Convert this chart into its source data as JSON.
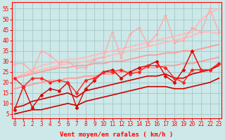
{
  "bg_color": "#cce8e8",
  "grid_color": "#aacccc",
  "xlabel": "Vent moyen/en rafales ( km/h )",
  "ylabel_ticks": [
    5,
    10,
    15,
    20,
    25,
    30,
    35,
    40,
    45,
    50,
    55
  ],
  "xlim": [
    -0.3,
    23.3
  ],
  "ylim": [
    3,
    58
  ],
  "x": [
    0,
    1,
    2,
    3,
    4,
    5,
    6,
    7,
    8,
    9,
    10,
    11,
    12,
    13,
    14,
    15,
    16,
    17,
    18,
    19,
    20,
    21,
    22,
    23
  ],
  "lines": [
    {
      "y": [
        22,
        24,
        26,
        28,
        29,
        30,
        31,
        31,
        32,
        33,
        34,
        35,
        36,
        37,
        38,
        39,
        40,
        41,
        42,
        43,
        44,
        50,
        53,
        55
      ],
      "color": "#ffbbbb",
      "lw": 1.4,
      "marker": null,
      "zorder": 2
    },
    {
      "y": [
        22,
        23,
        25,
        26,
        27,
        28,
        29,
        29,
        30,
        31,
        32,
        33,
        34,
        35,
        36,
        37,
        38,
        39,
        40,
        41,
        42,
        44,
        44,
        43
      ],
      "color": "#ffbbbb",
      "lw": 1.4,
      "marker": null,
      "zorder": 2
    },
    {
      "y": [
        29,
        29,
        25,
        35,
        33,
        29,
        30,
        27,
        27,
        31,
        32,
        44,
        32,
        43,
        46,
        38,
        43,
        52,
        39,
        40,
        46,
        44,
        55,
        44
      ],
      "color": "#ffaaaa",
      "lw": 1.0,
      "marker": "D",
      "ms": 2.0,
      "zorder": 3
    },
    {
      "y": [
        22,
        23,
        24,
        25,
        26,
        27,
        27,
        28,
        28,
        29,
        29,
        30,
        30,
        31,
        32,
        33,
        33,
        34,
        34,
        35,
        35,
        36,
        37,
        38
      ],
      "color": "#ff9999",
      "lw": 1.3,
      "marker": null,
      "zorder": 2
    },
    {
      "y": [
        17,
        18,
        19,
        20,
        21,
        21,
        22,
        22,
        23,
        23,
        24,
        24,
        25,
        25,
        26,
        27,
        27,
        28,
        28,
        29,
        29,
        30,
        31,
        32
      ],
      "color": "#ff9999",
      "lw": 1.3,
      "marker": null,
      "zorder": 2
    },
    {
      "y": [
        22,
        18,
        22,
        22,
        20,
        21,
        20,
        15,
        21,
        22,
        25,
        25,
        26,
        24,
        25,
        28,
        28,
        27,
        22,
        20,
        26,
        26,
        26,
        29
      ],
      "color": "#ff2222",
      "lw": 1.0,
      "marker": "D",
      "ms": 2.5,
      "zorder": 5
    },
    {
      "y": [
        7,
        18,
        8,
        14,
        17,
        16,
        20,
        8,
        17,
        21,
        25,
        26,
        22,
        25,
        27,
        28,
        30,
        23,
        20,
        26,
        35,
        26,
        26,
        29
      ],
      "color": "#dd0000",
      "lw": 1.0,
      "marker": "D",
      "ms": 2.5,
      "zorder": 4
    },
    {
      "y": [
        5,
        6,
        7,
        7,
        8,
        9,
        10,
        9,
        11,
        12,
        13,
        14,
        15,
        16,
        17,
        18,
        18,
        18,
        17,
        17,
        18,
        19,
        20,
        22
      ],
      "color": "#cc0000",
      "lw": 1.2,
      "marker": null,
      "zorder": 3
    },
    {
      "y": [
        8,
        9,
        11,
        12,
        13,
        14,
        15,
        13,
        16,
        17,
        18,
        19,
        20,
        21,
        22,
        23,
        23,
        24,
        22,
        22,
        24,
        25,
        26,
        28
      ],
      "color": "#cc0000",
      "lw": 1.2,
      "marker": null,
      "zorder": 3
    }
  ],
  "tick_label_color": "#ff0000",
  "xlabel_color": "#ff0000",
  "xlabel_fontsize": 6.5,
  "tick_fontsize": 5.5
}
